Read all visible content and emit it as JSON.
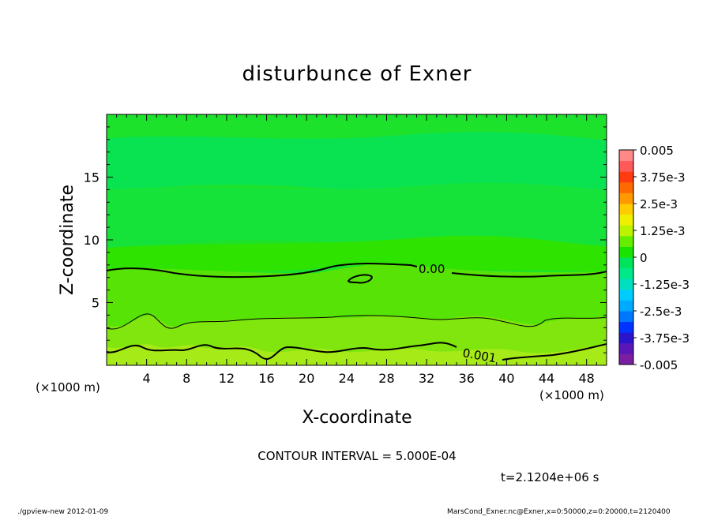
{
  "chart_data": {
    "type": "contour",
    "title": "disturbunce of Exner",
    "xlabel": "X-coordinate",
    "ylabel": "Z-coordinate",
    "x_unit": "(×1000 m)",
    "y_unit": "(×1000 m)",
    "xlim": [
      0,
      50
    ],
    "ylim": [
      0,
      20
    ],
    "x_ticks": [
      "4",
      "8",
      "12",
      "16",
      "20",
      "24",
      "28",
      "32",
      "36",
      "40",
      "44",
      "48"
    ],
    "y_ticks": [
      "5",
      "10",
      "15"
    ],
    "contour_labels": [
      "0.00",
      "0.001"
    ],
    "colorbar": {
      "labels": [
        "0.005",
        "3.75e-3",
        "2.5e-3",
        "1.25e-3",
        "0",
        "-1.25e-3",
        "-2.5e-3",
        "-3.75e-3",
        "-0.005"
      ],
      "range": [
        -0.005,
        0.005
      ],
      "colors": [
        "#7a1fa2",
        "#5a17b8",
        "#2a14cc",
        "#0033ff",
        "#0077ff",
        "#00aaff",
        "#00ccff",
        "#00e0c0",
        "#00e88a",
        "#00e35c",
        "#19e400",
        "#66ee00",
        "#bbf400",
        "#eef000",
        "#ffcc00",
        "#ff9900",
        "#ff6a00",
        "#ff3b10",
        "#ff5a5a",
        "#ff8888"
      ]
    },
    "fill_bands": [
      {
        "name": "z 0-1.5 km",
        "color": "#a6ea18"
      },
      {
        "name": "z 1.5-3 km",
        "color": "#80e60e"
      },
      {
        "name": "z 3-5.5 km",
        "color": "#57e305"
      },
      {
        "name": "z 5.5-9 km",
        "color": "#2ee300"
      },
      {
        "name": "z 9-13 km",
        "color": "#16e33a"
      },
      {
        "name": "z 13-18 km",
        "color": "#09e352"
      },
      {
        "name": "z 18-20 km",
        "color": "#1de22c"
      }
    ],
    "contour_interval_text": "CONTOUR INTERVAL = 5.000E-04",
    "time_text": "t=2.1204e+06 s"
  },
  "footer": {
    "left": "./gpview-new   2012-01-09",
    "right": "MarsCond_Exner.nc@Exner,x=0:50000,z=0:20000,t=2120400"
  }
}
